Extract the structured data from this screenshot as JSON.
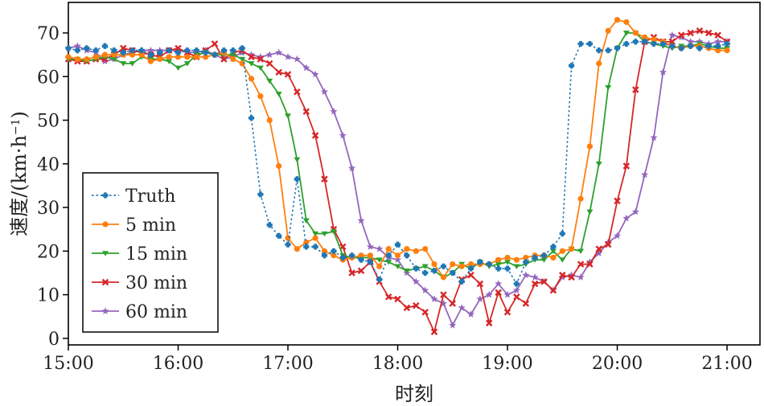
{
  "chart_data": {
    "type": "line",
    "xlabel": "时刻",
    "ylabel": "速度/(km·h⁻¹)",
    "ylabel_unit_base": "速度/(km·h",
    "ylabel_unit_exp": "−1",
    "ylabel_unit_close": ")",
    "xlim": [
      15.0,
      21.3
    ],
    "ylim": [
      -1.5,
      77
    ],
    "x_ticks": [
      15,
      16,
      17,
      18,
      19,
      20,
      21
    ],
    "x_tick_labels": [
      "15:00",
      "16:00",
      "17:00",
      "18:00",
      "19:00",
      "20:00",
      "21:00"
    ],
    "y_ticks": [
      0,
      10,
      20,
      30,
      40,
      50,
      60,
      70
    ],
    "y_tick_labels": [
      "0",
      "10",
      "20",
      "30",
      "40",
      "50",
      "60",
      "70"
    ],
    "grid": false,
    "legend_position": "bottom-left",
    "series": [
      {
        "name": "Truth",
        "color": "#1f77b4",
        "dash": "dotted",
        "marker": "plus",
        "x": [
          15.0,
          15.083,
          15.167,
          15.25,
          15.333,
          15.417,
          15.5,
          15.583,
          15.667,
          15.75,
          15.833,
          15.917,
          16.0,
          16.083,
          16.167,
          16.25,
          16.333,
          16.417,
          16.5,
          16.583,
          16.667,
          16.75,
          16.833,
          16.917,
          17.0,
          17.083,
          17.167,
          17.25,
          17.333,
          17.417,
          17.5,
          17.583,
          17.667,
          17.75,
          17.833,
          17.917,
          18.0,
          18.083,
          18.167,
          18.25,
          18.333,
          18.417,
          18.5,
          18.583,
          18.667,
          18.75,
          18.833,
          18.917,
          19.0,
          19.083,
          19.167,
          19.25,
          19.333,
          19.417,
          19.5,
          19.583,
          19.667,
          19.75,
          19.833,
          19.917,
          20.0,
          20.083,
          20.167,
          20.25,
          20.333,
          20.417,
          20.5,
          20.583,
          20.667,
          20.75,
          20.833,
          20.917,
          21.0
        ],
        "values": [
          66.5,
          66,
          66.5,
          66,
          67,
          66,
          65.5,
          66,
          66,
          65,
          65.5,
          66,
          65.5,
          66,
          66,
          65.5,
          65,
          66,
          66,
          66.5,
          50.5,
          33,
          26,
          23.5,
          21.5,
          36.5,
          21,
          21,
          19,
          20,
          18.5,
          19,
          18,
          17.5,
          13.5,
          19,
          21.5,
          19,
          16,
          15,
          15.5,
          16.5,
          15,
          13,
          16,
          17.5,
          17,
          16,
          16,
          12.5,
          17.5,
          18.5,
          19,
          21,
          24,
          62.5,
          67.5,
          67.5,
          66,
          66,
          66.5,
          67.5,
          68,
          68,
          67.5,
          67.5,
          67,
          66.5,
          67,
          66.5,
          67,
          67,
          67.5
        ]
      },
      {
        "name": "5 min",
        "color": "#ff7f0e",
        "dash": "solid",
        "marker": "circle",
        "x": [
          15.0,
          15.083,
          15.167,
          15.25,
          15.333,
          15.417,
          15.5,
          15.583,
          15.667,
          15.75,
          15.833,
          15.917,
          16.0,
          16.083,
          16.167,
          16.25,
          16.333,
          16.417,
          16.5,
          16.583,
          16.667,
          16.75,
          16.833,
          16.917,
          17.0,
          17.083,
          17.167,
          17.25,
          17.333,
          17.417,
          17.5,
          17.583,
          17.667,
          17.75,
          17.833,
          17.917,
          18.0,
          18.083,
          18.167,
          18.25,
          18.333,
          18.417,
          18.5,
          18.583,
          18.667,
          18.75,
          18.833,
          18.917,
          19.0,
          19.083,
          19.167,
          19.25,
          19.333,
          19.417,
          19.5,
          19.583,
          19.667,
          19.75,
          19.833,
          19.917,
          20.0,
          20.083,
          20.167,
          20.25,
          20.333,
          20.417,
          20.5,
          20.583,
          20.667,
          20.75,
          20.833,
          20.917,
          21.0
        ],
        "values": [
          64.5,
          64,
          64,
          64.5,
          65,
          65,
          65,
          65,
          65,
          63.5,
          64,
          64.5,
          64.5,
          64.5,
          64.5,
          64.5,
          65,
          65.5,
          64,
          63,
          59.5,
          55.5,
          50,
          39.5,
          23,
          20.5,
          22,
          23,
          20,
          19,
          18,
          18.5,
          19,
          19,
          16.5,
          20.5,
          19,
          20.5,
          20,
          20.5,
          17,
          14,
          17,
          16.5,
          17,
          17,
          17,
          18,
          18.5,
          18,
          18.5,
          19,
          19,
          18.5,
          20,
          20.5,
          32,
          44,
          63,
          70.5,
          73,
          72.5,
          70,
          69,
          68.5,
          68,
          67,
          66.5,
          67,
          67,
          66.5,
          66,
          66
        ]
      },
      {
        "name": "15 min",
        "color": "#2ca02c",
        "dash": "solid",
        "marker": "tri-down",
        "x": [
          15.0,
          15.083,
          15.167,
          15.25,
          15.333,
          15.417,
          15.5,
          15.583,
          15.667,
          15.75,
          15.833,
          15.917,
          16.0,
          16.083,
          16.167,
          16.25,
          16.333,
          16.417,
          16.5,
          16.583,
          16.667,
          16.75,
          16.833,
          16.917,
          17.0,
          17.083,
          17.167,
          17.25,
          17.333,
          17.417,
          17.5,
          17.583,
          17.667,
          17.75,
          17.833,
          17.917,
          18.0,
          18.083,
          18.167,
          18.25,
          18.333,
          18.417,
          18.5,
          18.583,
          18.667,
          18.75,
          18.833,
          18.917,
          19.0,
          19.083,
          19.167,
          19.25,
          19.333,
          19.417,
          19.5,
          19.583,
          19.667,
          19.75,
          19.833,
          19.917,
          20.0,
          20.083,
          20.167,
          20.25,
          20.333,
          20.417,
          20.5,
          20.583,
          20.667,
          20.75,
          20.833,
          20.917,
          21.0
        ],
        "values": [
          64,
          64,
          63.5,
          64,
          64.5,
          64,
          63,
          63,
          64.5,
          64,
          64,
          63.5,
          62,
          63,
          65,
          65.5,
          65,
          65,
          65,
          64,
          63,
          62,
          59,
          56,
          51,
          41,
          27,
          24,
          24,
          24.5,
          19,
          18.5,
          18.5,
          18.5,
          18,
          17.5,
          16.5,
          15.5,
          16,
          16.5,
          15.5,
          14,
          15,
          17,
          16,
          17.5,
          16.5,
          17,
          17.5,
          16.5,
          17,
          18,
          18,
          20,
          18,
          20.5,
          20,
          29,
          40,
          57.5,
          66.5,
          70,
          70,
          68,
          67.5,
          67,
          66.5,
          67,
          67,
          67.5,
          67,
          66.5,
          66.5
        ]
      },
      {
        "name": "30 min",
        "color": "#d62728",
        "dash": "solid",
        "marker": "x",
        "x": [
          15.0,
          15.083,
          15.167,
          15.25,
          15.333,
          15.417,
          15.5,
          15.583,
          15.667,
          15.75,
          15.833,
          15.917,
          16.0,
          16.083,
          16.167,
          16.25,
          16.333,
          16.417,
          16.5,
          16.583,
          16.667,
          16.75,
          16.833,
          16.917,
          17.0,
          17.083,
          17.167,
          17.25,
          17.333,
          17.417,
          17.5,
          17.583,
          17.667,
          17.75,
          17.833,
          17.917,
          18.0,
          18.083,
          18.167,
          18.25,
          18.333,
          18.417,
          18.5,
          18.583,
          18.667,
          18.75,
          18.833,
          18.917,
          19.0,
          19.083,
          19.167,
          19.25,
          19.333,
          19.417,
          19.5,
          19.583,
          19.667,
          19.75,
          19.833,
          19.917,
          20.0,
          20.083,
          20.167,
          20.25,
          20.333,
          20.417,
          20.5,
          20.583,
          20.667,
          20.75,
          20.833,
          20.917,
          21.0
        ],
        "values": [
          64,
          63.5,
          63.5,
          64,
          64,
          65,
          66.5,
          66,
          65.5,
          65,
          64.5,
          66,
          66.5,
          65.5,
          64.5,
          66,
          67.5,
          64,
          65.5,
          66,
          64.5,
          64,
          63,
          61,
          60.5,
          56.5,
          52,
          46.5,
          36.5,
          25,
          21,
          15,
          15.5,
          17.5,
          13,
          9.5,
          9,
          7,
          7.5,
          6,
          1.5,
          10,
          8,
          13.5,
          14.5,
          12.5,
          3.5,
          10.5,
          6,
          9.5,
          8,
          12.5,
          13,
          11,
          14.5,
          14,
          17,
          17,
          20.5,
          21.5,
          31.5,
          39.5,
          57,
          68,
          69,
          68,
          68,
          69.5,
          70,
          70.5,
          70,
          69.5,
          68
        ]
      },
      {
        "name": "60 min",
        "color": "#9467bd",
        "dash": "solid",
        "marker": "star",
        "x": [
          15.0,
          15.083,
          15.167,
          15.25,
          15.333,
          15.417,
          15.5,
          15.583,
          15.667,
          15.75,
          15.833,
          15.917,
          16.0,
          16.083,
          16.167,
          16.25,
          16.333,
          16.417,
          16.5,
          16.583,
          16.667,
          16.75,
          16.833,
          16.917,
          17.0,
          17.083,
          17.167,
          17.25,
          17.333,
          17.417,
          17.5,
          17.583,
          17.667,
          17.75,
          17.833,
          17.917,
          18.0,
          18.083,
          18.167,
          18.25,
          18.333,
          18.417,
          18.5,
          18.583,
          18.667,
          18.75,
          18.833,
          18.917,
          19.0,
          19.083,
          19.167,
          19.25,
          19.333,
          19.417,
          19.5,
          19.583,
          19.667,
          19.75,
          19.833,
          19.917,
          20.0,
          20.083,
          20.167,
          20.25,
          20.333,
          20.417,
          20.5,
          20.583,
          20.667,
          20.75,
          20.833,
          20.917,
          21.0
        ],
        "values": [
          66.5,
          67,
          66,
          65.5,
          63.5,
          64,
          65,
          65.5,
          66,
          66,
          66,
          66,
          66,
          65.5,
          65.5,
          66,
          65,
          64,
          64.5,
          65.5,
          65,
          64.5,
          65,
          65.5,
          64.5,
          64,
          62,
          60.5,
          56.5,
          52,
          46.5,
          39,
          27,
          21,
          20.5,
          18.5,
          18,
          15,
          13,
          11,
          9,
          8,
          3,
          7,
          5.5,
          9,
          10,
          12.5,
          10,
          11,
          14.5,
          14,
          13,
          11,
          14,
          14.5,
          14,
          17.5,
          19.5,
          22,
          23.5,
          27.5,
          29,
          37.5,
          46,
          61,
          69.5,
          69,
          68,
          68,
          67.5,
          68,
          68
        ]
      }
    ]
  }
}
